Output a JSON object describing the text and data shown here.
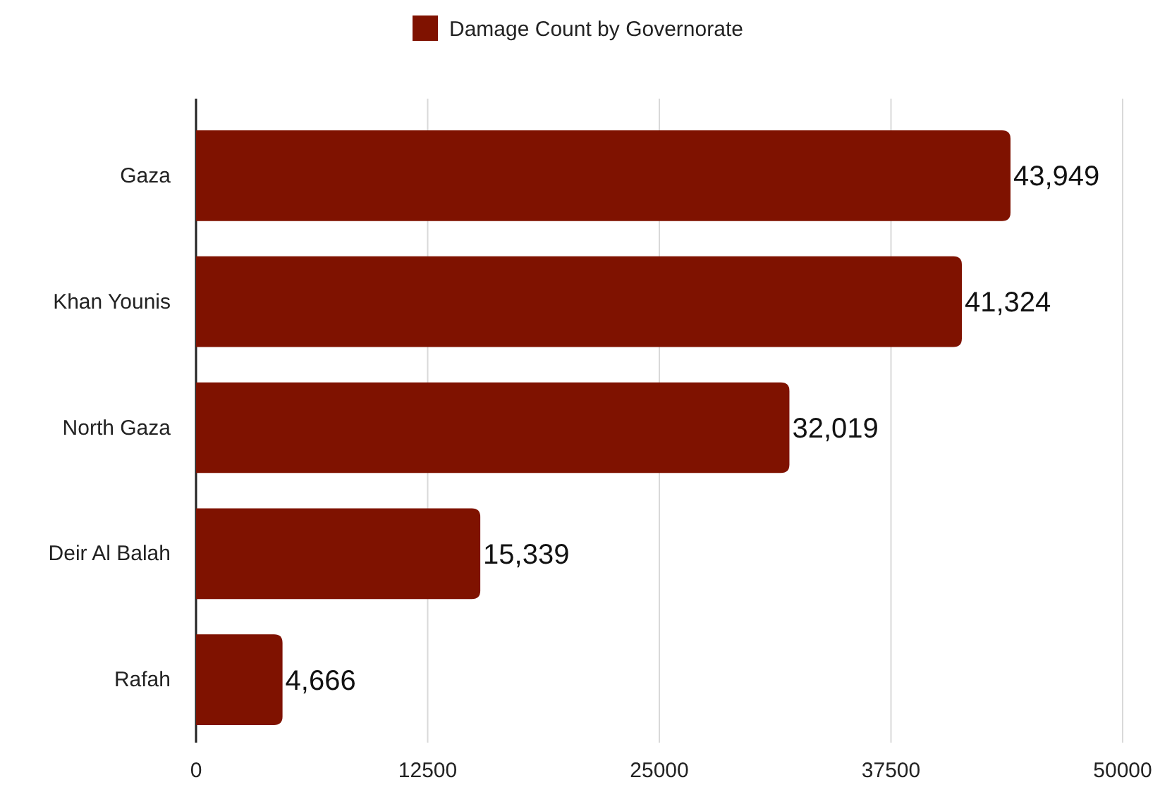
{
  "chart_data": {
    "type": "bar",
    "orientation": "horizontal",
    "categories": [
      "Gaza",
      "Khan Younis",
      "North Gaza",
      "Deir Al Balah",
      "Rafah"
    ],
    "series": [
      {
        "name": "Damage Count by Governorate",
        "color": "#7f1200",
        "values": [
          43949,
          41324,
          32019,
          15339,
          4666
        ],
        "value_labels": [
          "43,949",
          "41,324",
          "32,019",
          "15,339",
          "4,666"
        ]
      }
    ],
    "xlim": [
      0,
      50000
    ],
    "xticks": [
      0,
      12500,
      25000,
      37500,
      50000
    ],
    "grid": "x",
    "legend": "top"
  }
}
